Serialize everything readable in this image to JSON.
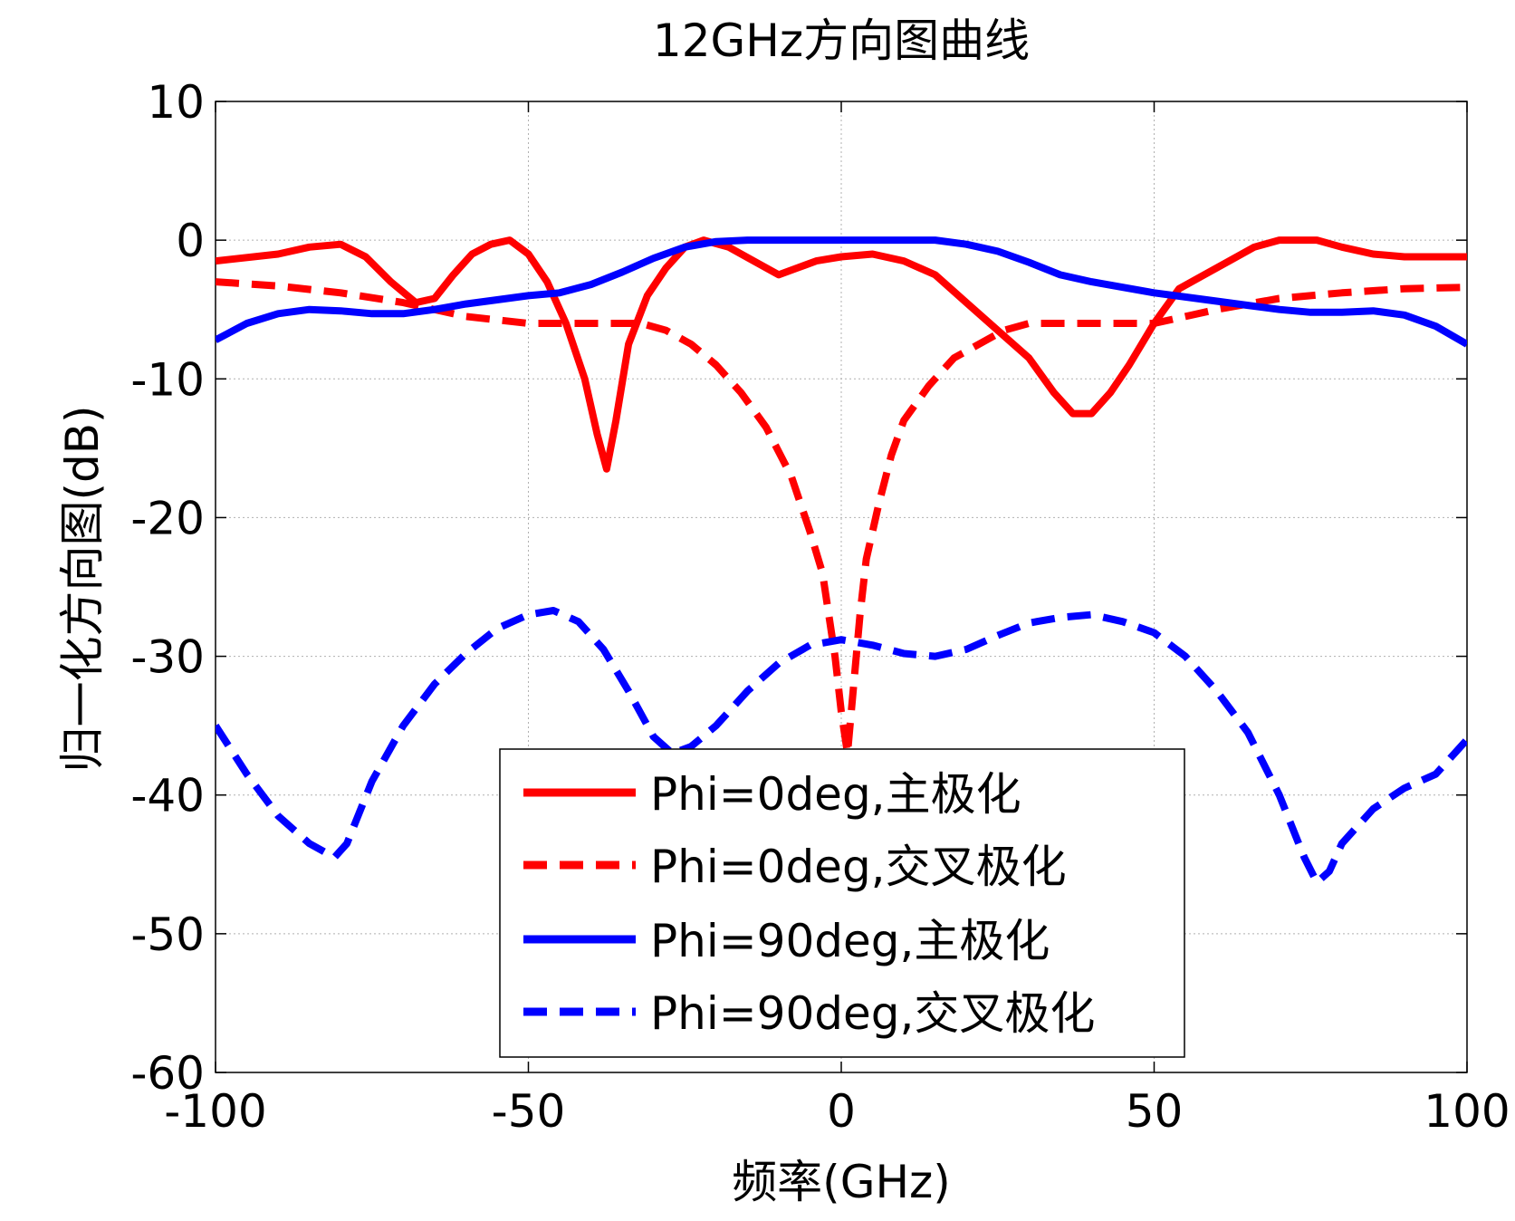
{
  "chart_data": {
    "type": "line",
    "title": "12GHz方向图曲线",
    "xlabel": "频率(GHz)",
    "ylabel": "归一化方向图(dB)",
    "xlim": [
      -100,
      100
    ],
    "ylim": [
      -60,
      10
    ],
    "xticks": [
      -100,
      -50,
      0,
      50,
      100
    ],
    "yticks": [
      10,
      0,
      -10,
      -20,
      -30,
      -40,
      -50,
      -60
    ],
    "grid": true,
    "legend_position": "bottom-center",
    "series": [
      {
        "name": "Phi=0deg,主极化",
        "color": "#ff0000",
        "dash": "solid",
        "x": [
          -100,
          -90,
          -85,
          -80,
          -76,
          -72,
          -68,
          -65,
          -62,
          -59,
          -56,
          -53,
          -50,
          -47,
          -44,
          -41,
          -39,
          -37.5,
          -36,
          -34,
          -31,
          -28,
          -25,
          -22,
          -18,
          -14,
          -10,
          -7,
          -4,
          0,
          5,
          10,
          15,
          20,
          25,
          30,
          34,
          37,
          40,
          43,
          46,
          50,
          54,
          58,
          62,
          66,
          70,
          76,
          80,
          85,
          90,
          95,
          100
        ],
        "values": [
          -1.5,
          -1,
          -0.5,
          -0.3,
          -1.2,
          -3,
          -4.5,
          -4.2,
          -2.5,
          -1,
          -0.3,
          0,
          -1,
          -3,
          -6,
          -10,
          -14,
          -16.5,
          -13,
          -7.5,
          -4,
          -2,
          -0.5,
          0,
          -0.5,
          -1.5,
          -2.5,
          -2,
          -1.5,
          -1.2,
          -1,
          -1.5,
          -2.5,
          -4.5,
          -6.5,
          -8.5,
          -11,
          -12.5,
          -12.5,
          -11,
          -9,
          -6,
          -3.5,
          -2.5,
          -1.5,
          -0.5,
          0,
          0,
          -0.5,
          -1,
          -1.2,
          -1.2,
          -1.2
        ]
      },
      {
        "name": "Phi=0deg,交叉极化",
        "color": "#ff0000",
        "dash": "dashed",
        "x": [
          -100,
          -90,
          -80,
          -70,
          -60,
          -50,
          -40,
          -32,
          -28,
          -24,
          -20,
          -16,
          -12,
          -8,
          -5,
          -3,
          -1,
          0,
          1,
          2,
          3,
          4,
          6,
          8,
          10,
          14,
          18,
          22,
          26,
          30,
          36,
          40,
          45,
          50,
          55,
          60,
          70,
          80,
          90,
          100
        ],
        "values": [
          -3,
          -3.3,
          -3.8,
          -4.5,
          -5.5,
          -6,
          -6,
          -6,
          -6.5,
          -7.5,
          -9,
          -11,
          -13.5,
          -17,
          -21,
          -24,
          -30,
          -34,
          -37,
          -32,
          -27,
          -23,
          -19,
          -15.5,
          -13,
          -10.5,
          -8.5,
          -7.5,
          -6.5,
          -6,
          -6,
          -6,
          -6,
          -6,
          -5.5,
          -5,
          -4.2,
          -3.8,
          -3.5,
          -3.4
        ]
      },
      {
        "name": "Phi=90deg,主极化",
        "color": "#0000ff",
        "dash": "solid",
        "x": [
          -100,
          -95,
          -90,
          -85,
          -80,
          -75,
          -70,
          -65,
          -60,
          -55,
          -50,
          -45,
          -40,
          -35,
          -30,
          -25,
          -20,
          -15,
          -10,
          -5,
          0,
          5,
          10,
          15,
          20,
          25,
          30,
          35,
          40,
          45,
          50,
          55,
          60,
          65,
          70,
          75,
          80,
          85,
          90,
          95,
          100
        ],
        "values": [
          -7.2,
          -6,
          -5.3,
          -5,
          -5.1,
          -5.3,
          -5.3,
          -5,
          -4.6,
          -4.3,
          -4,
          -3.8,
          -3.2,
          -2.3,
          -1.3,
          -0.5,
          -0.1,
          0,
          0,
          0,
          0,
          0,
          0,
          0,
          -0.3,
          -0.8,
          -1.6,
          -2.5,
          -3,
          -3.4,
          -3.8,
          -4.1,
          -4.4,
          -4.7,
          -5,
          -5.2,
          -5.2,
          -5.1,
          -5.4,
          -6.2,
          -7.5
        ]
      },
      {
        "name": "Phi=90deg,交叉极化",
        "color": "#0000ff",
        "dash": "dashed",
        "x": [
          -100,
          -95,
          -90,
          -85,
          -81,
          -79,
          -75,
          -70,
          -65,
          -60,
          -55,
          -50,
          -46,
          -42,
          -38,
          -34,
          -30,
          -27,
          -24,
          -20,
          -15,
          -10,
          -5,
          0,
          5,
          10,
          15,
          20,
          25,
          30,
          35,
          40,
          45,
          50,
          55,
          60,
          65,
          70,
          74,
          76,
          78,
          80,
          85,
          90,
          95,
          100
        ],
        "values": [
          -35,
          -38.5,
          -41.5,
          -43.5,
          -44.5,
          -43.5,
          -39,
          -35,
          -32,
          -29.8,
          -28,
          -27,
          -26.7,
          -27.5,
          -29.5,
          -32.5,
          -35.8,
          -37,
          -36.5,
          -35,
          -32.5,
          -30.5,
          -29.2,
          -28.8,
          -29.2,
          -29.8,
          -30,
          -29.5,
          -28.5,
          -27.6,
          -27.2,
          -27,
          -27.5,
          -28.3,
          -30,
          -32.5,
          -35.5,
          -40,
          -44.5,
          -46.3,
          -45.5,
          -43.5,
          -41,
          -39.5,
          -38.5,
          -36
        ]
      }
    ]
  }
}
